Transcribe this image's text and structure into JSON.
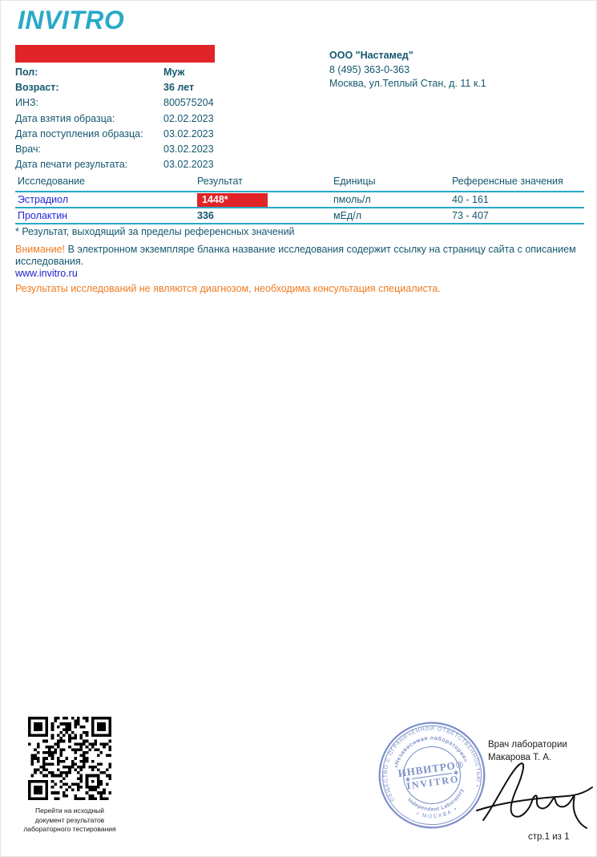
{
  "logo": {
    "text": "INVITRO"
  },
  "patient": {
    "rows": [
      {
        "label": "Пол:",
        "value": "Муж"
      },
      {
        "label": "Возраст:",
        "value": "36 лет"
      },
      {
        "label": "ИНЗ:",
        "value": "800575204"
      },
      {
        "label": "Дата взятия образца:",
        "value": "02.02.2023"
      },
      {
        "label": "Дата поступления образца:",
        "value": "03.02.2023"
      },
      {
        "label": "Врач:",
        "value": "03.02.2023"
      },
      {
        "label": "Дата печати результата:",
        "value": "03.02.2023"
      }
    ]
  },
  "clinic": {
    "name": "ООО \"Настамед\"",
    "phone": "8 (495) 363-0-363",
    "address": "Москва, ул.Теплый Стан, д. 11 к.1"
  },
  "results_table": {
    "headers": [
      "Исследование",
      "Результат",
      "Единицы",
      "Референсные значения"
    ],
    "rows": [
      {
        "test": "Эстрадиол",
        "result": "1448*",
        "units": "пмоль/л",
        "reference": "40 - 161",
        "flagged": true
      },
      {
        "test": "Пролактин",
        "result": "336",
        "units": "мЕд/л",
        "reference": "73 - 407",
        "flagged": false
      }
    ]
  },
  "notes": {
    "footnote": "* Результат, выходящий за пределы референсных значений",
    "attention_label": "Внимание!",
    "attention_text": " В электронном экземпляре бланка название исследования содержит ссылку на страницу сайта с описанием исследования.",
    "website": "www.invitro.ru",
    "disclaimer": "Результаты исследований не являются диагнозом, необходима консультация специалиста."
  },
  "qr": {
    "caption_line1": "Перейти на исходный",
    "caption_line2": "документ результатов",
    "caption_line3": "лабораторного тестирования"
  },
  "stamp": {
    "ring_outer_top": "ОБЩЕСТВО С ОГРАНИЧЕННОЙ ОТВЕТСТВЕННОСТЬЮ • Г.Р.№ 659 695",
    "ring_outer_bottom": "• МОСКВА •",
    "ring_inner_top": "«Независимая лаборатория»",
    "ring_inner_bottom": "Independent Laboratory",
    "center_line1": "ИНВИТРО®",
    "center_line2": "INVITRO"
  },
  "signatory": {
    "role": "Врач лаборатории",
    "name": "Макарова Т. А."
  },
  "footer": {
    "page_label": "стр.1 из 1"
  },
  "colors": {
    "brand_teal": "#29A9C7",
    "dark_navy": "#14586E",
    "link_blue": "#2626D8",
    "alert_red": "#E02427",
    "accent_orange": "#F07A1E",
    "stamp_blue": "#7388C6"
  }
}
